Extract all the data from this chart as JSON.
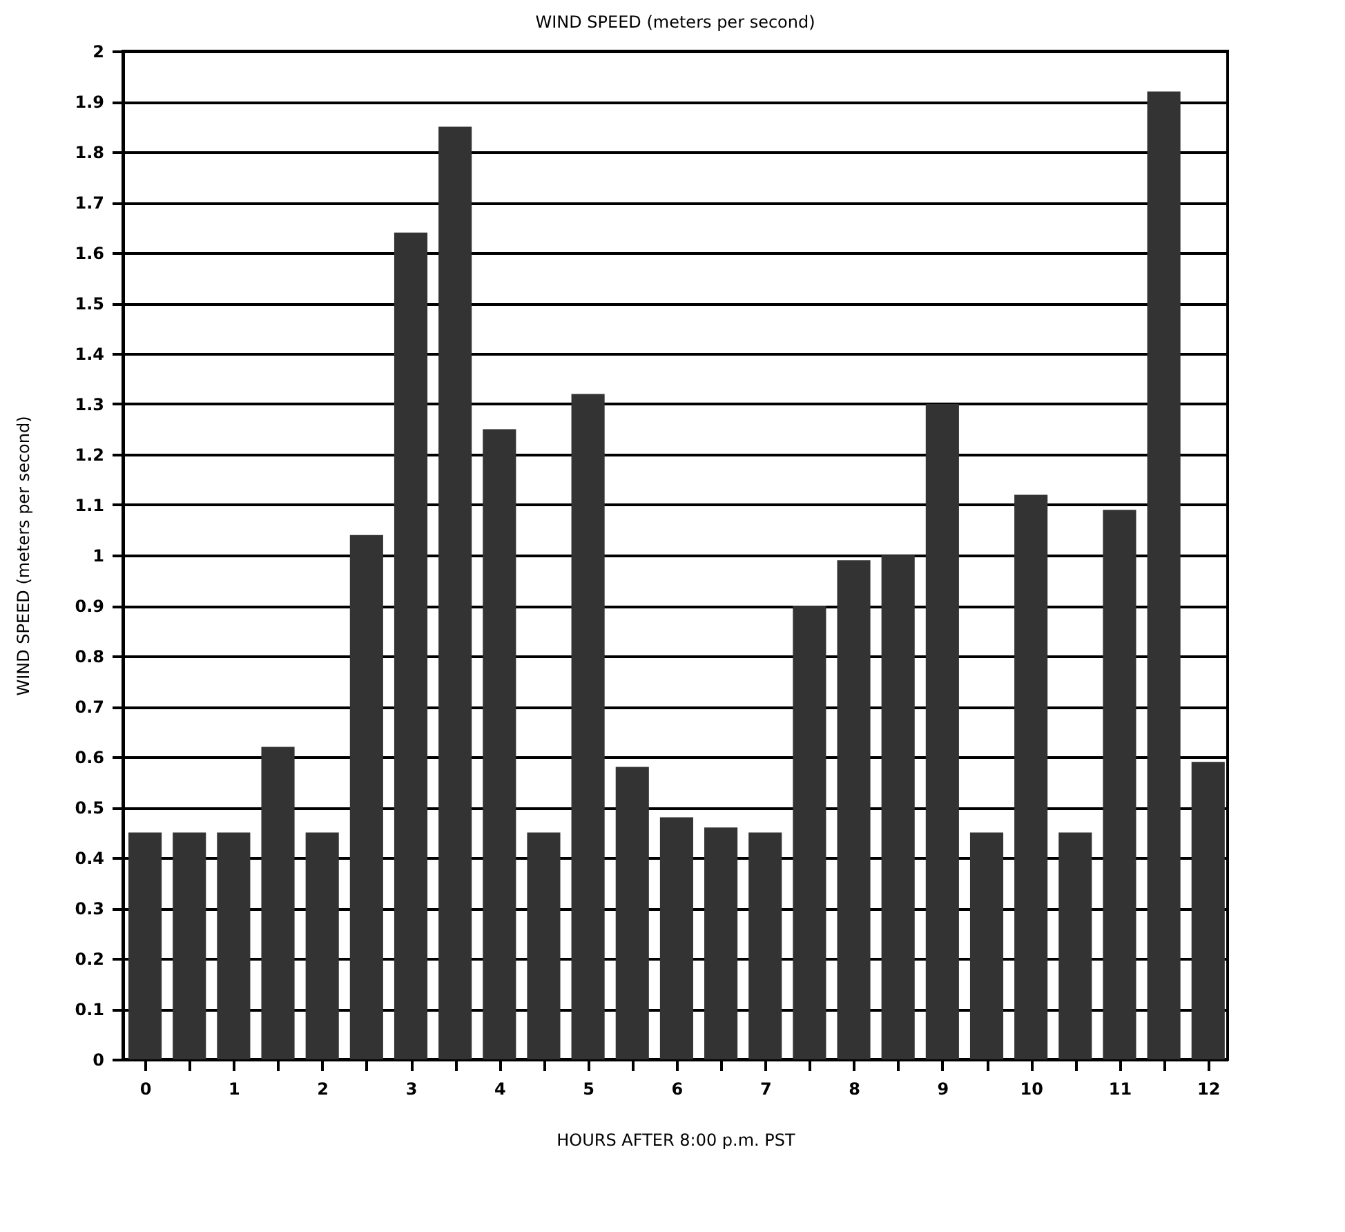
{
  "chart_data": {
    "type": "bar",
    "title": "WIND SPEED (meters per second)",
    "xlabel": "HOURS AFTER 8:00 p.m. PST",
    "ylabel": "WIND SPEED  (meters per second)",
    "x": [
      0,
      0.5,
      1,
      1.5,
      2,
      2.5,
      3,
      3.5,
      4,
      4.5,
      5,
      5.5,
      6,
      6.5,
      7,
      7.5,
      8,
      8.5,
      9,
      9.5,
      10,
      10.5,
      11,
      11.5,
      12
    ],
    "values": [
      0.45,
      0.45,
      0.45,
      0.62,
      0.45,
      1.04,
      1.64,
      1.85,
      1.25,
      0.45,
      1.32,
      0.58,
      0.48,
      0.46,
      0.45,
      0.9,
      0.99,
      1.0,
      1.3,
      0.45,
      1.12,
      0.45,
      1.09,
      1.92,
      0.59
    ],
    "color": "#333333",
    "xlim": [
      -0.25,
      12.22
    ],
    "xticks": [
      0,
      {
        "value": 0.5,
        "label": null
      },
      1,
      {
        "value": 1.5,
        "label": null
      },
      2,
      {
        "value": 2.5,
        "label": null
      },
      3,
      {
        "value": 3.5,
        "label": null
      },
      4,
      {
        "value": 4.5,
        "label": null
      },
      5,
      {
        "value": 5.5,
        "label": null
      },
      6,
      {
        "value": 6.5,
        "label": null
      },
      7,
      {
        "value": 7.5,
        "label": null
      },
      8,
      {
        "value": 8.5,
        "label": null
      },
      9,
      {
        "value": 9.5,
        "label": null
      },
      10,
      {
        "value": 10.5,
        "label": null
      },
      11,
      {
        "value": 11.5,
        "label": null
      },
      12
    ],
    "ylim": [
      0,
      2
    ],
    "yticks": [
      0,
      0.1,
      0.2,
      0.3,
      0.4,
      0.5,
      0.6,
      0.7,
      0.8,
      0.9,
      1,
      1.1,
      1.2,
      1.3,
      1.4,
      1.5,
      1.6,
      1.7,
      1.8,
      1.9,
      2
    ],
    "grid": "y"
  }
}
